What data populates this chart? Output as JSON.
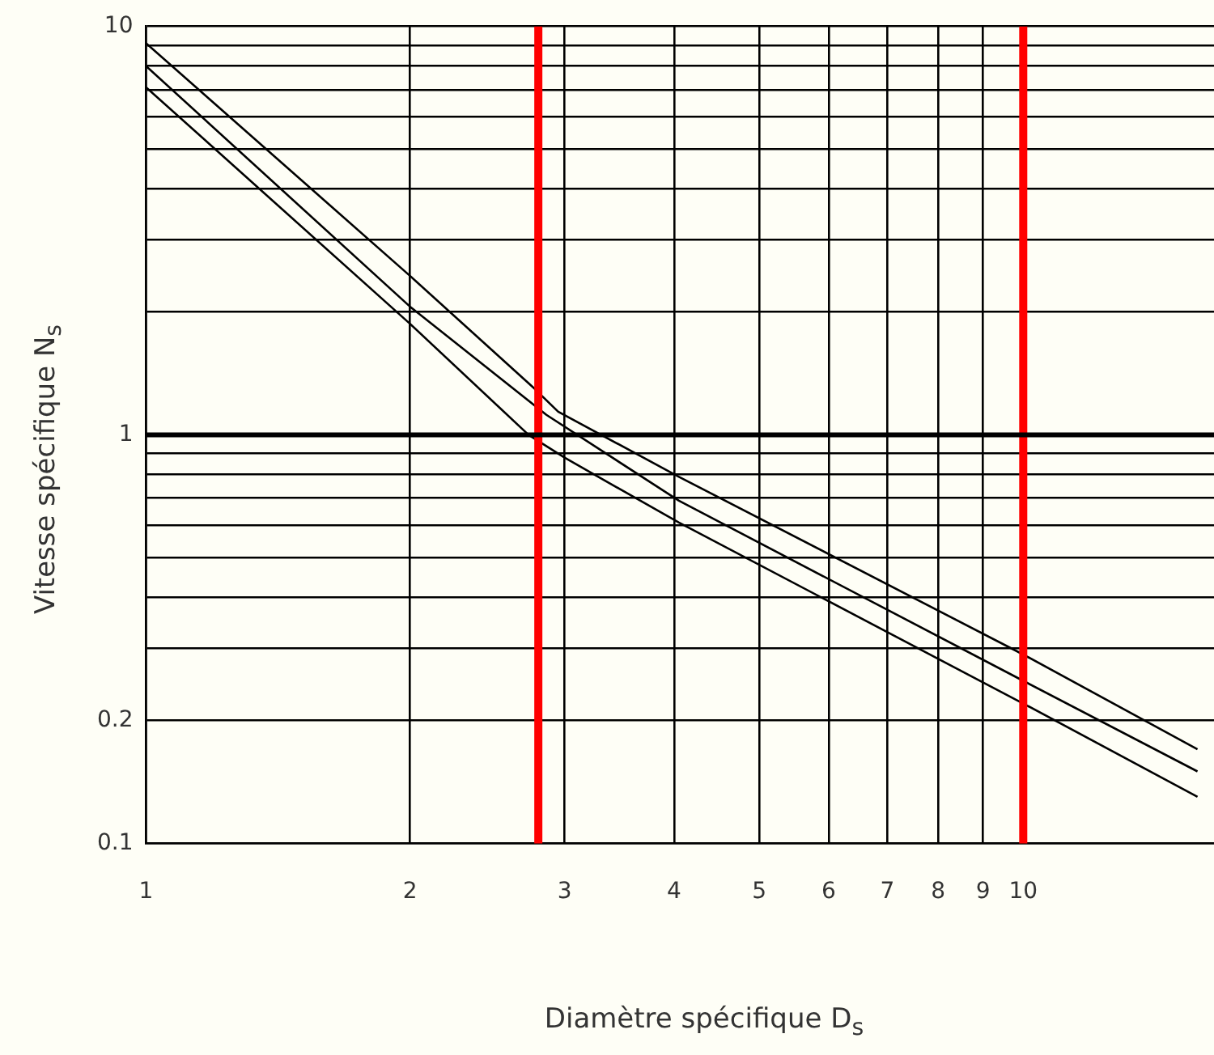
{
  "chart_data": {
    "type": "line",
    "xlabel": "Diamètre spécifique  D$_{s}$",
    "ylabel": "Vitesse spécifique  N$_{s}$",
    "log": "xy",
    "xlim": [
      1,
      16.5
    ],
    "ylim": [
      0.1,
      10
    ],
    "xticks": [
      1,
      2,
      3,
      4,
      5,
      6,
      7,
      8,
      9,
      10
    ],
    "yticks": [
      0.1,
      0.2,
      {
        "value": 0.3,
        "label": null
      },
      {
        "value": 0.4,
        "label": null
      },
      {
        "value": 0.5,
        "label": null
      },
      {
        "value": 0.6,
        "label": null
      },
      {
        "value": 0.7,
        "label": null
      },
      {
        "value": 0.8,
        "label": null
      },
      {
        "value": 0.9,
        "label": null
      },
      1,
      {
        "value": 2,
        "label": null
      },
      {
        "value": 3,
        "label": null
      },
      {
        "value": 4,
        "label": null
      },
      {
        "value": 5,
        "label": null
      },
      {
        "value": 6,
        "label": null
      },
      {
        "value": 7,
        "label": null
      },
      {
        "value": 8,
        "label": null
      },
      {
        "value": 9,
        "label": null
      },
      10
    ],
    "grid": true,
    "legend": false,
    "marker": "none",
    "line_style": "solid",
    "series": [
      {
        "color": "#000000",
        "x": [
          1,
          2,
          2.77,
          2.95,
          4.05,
          10,
          15.8
        ],
        "values": [
          9.1,
          2.45,
          1.3,
          1.14,
          0.79,
          0.29,
          0.17
        ]
      },
      {
        "color": "#000000",
        "x": [
          1,
          2,
          2.86,
          4.05,
          10,
          15.8
        ],
        "values": [
          8.0,
          2.06,
          1.12,
          0.69,
          0.25,
          0.15
        ]
      },
      {
        "color": "#000000",
        "x": [
          1,
          2,
          2.73,
          3,
          4.05,
          10,
          15.8
        ],
        "values": [
          7.1,
          1.87,
          1.0,
          0.88,
          0.61,
          0.22,
          0.13
        ]
      }
    ],
    "ref_lines": [
      {
        "axis": "x",
        "value": 2.8,
        "color": "#ff0000"
      },
      {
        "axis": "x",
        "value": 10,
        "color": "#ff0000"
      },
      {
        "axis": "y",
        "value": 1,
        "color": "#000000"
      }
    ]
  }
}
